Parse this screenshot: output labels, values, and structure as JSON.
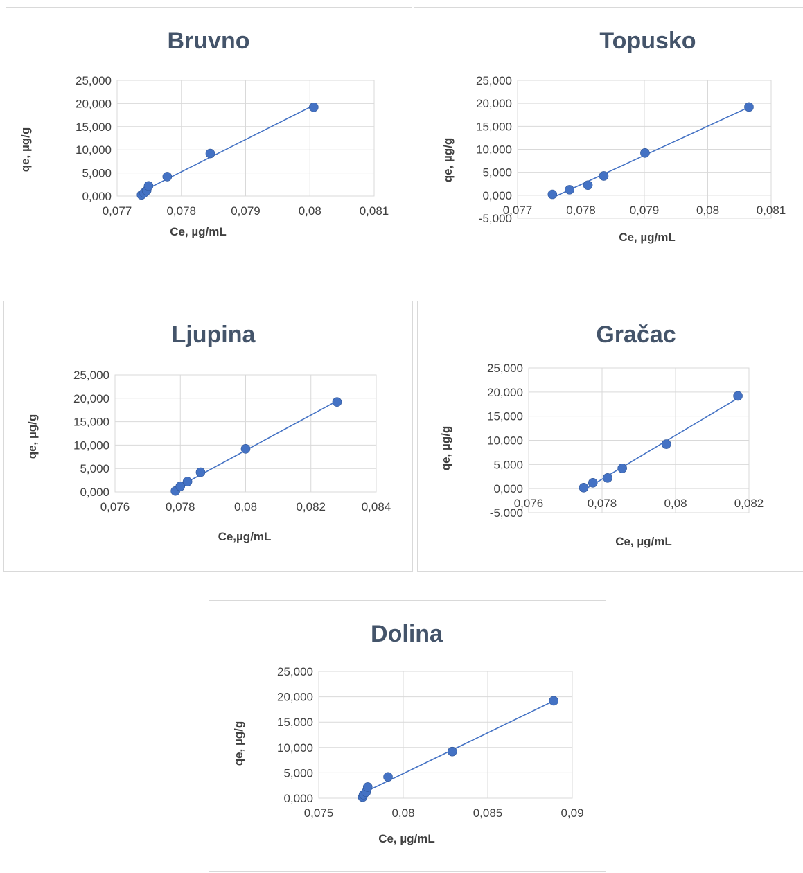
{
  "chart_data": [
    {
      "type": "scatter",
      "title": "Bruvno",
      "xlabel": "Ce, µg/mL",
      "ylabel": "qe, µg/g",
      "xlim": [
        0.077,
        0.081
      ],
      "ylim": [
        0,
        25000
      ],
      "xticks": [
        "0,077",
        "0,078",
        "0,079",
        "0,08",
        "0,081"
      ],
      "yticks": [
        "0,000",
        "5,000",
        "10,000",
        "15,000",
        "20,000",
        "25,000"
      ],
      "trendline": true,
      "x": [
        0.07738,
        0.07742,
        0.07746,
        0.07749,
        0.07778,
        0.07845,
        0.08006
      ],
      "y": [
        250,
        700,
        1200,
        2200,
        4200,
        9200,
        19200
      ]
    },
    {
      "type": "scatter",
      "title": "Topusko",
      "xlabel": "Ce, µg/mL",
      "ylabel": "qe, µg/g",
      "xlim": [
        0.077,
        0.081
      ],
      "ylim": [
        -5000,
        25000
      ],
      "xticks": [
        "0,077",
        "0,078",
        "0,079",
        "0,08",
        "0,081"
      ],
      "yticks": [
        "-5,000",
        "0,000",
        "5,000",
        "10,000",
        "15,000",
        "20,000",
        "25,000"
      ],
      "trendline": true,
      "x": [
        0.07755,
        0.07782,
        0.07811,
        0.07836,
        0.07901,
        0.08065
      ],
      "y": [
        200,
        1200,
        2200,
        4200,
        9200,
        19200
      ]
    },
    {
      "type": "scatter",
      "title": "Ljupina",
      "xlabel": "Ce,µg/mL",
      "ylabel": "qe, µg/g",
      "xlim": [
        0.076,
        0.084
      ],
      "ylim": [
        0,
        25000
      ],
      "xticks": [
        "0,076",
        "0,078",
        "0,08",
        "0,082",
        "0,084"
      ],
      "yticks": [
        "0,000",
        "5,000",
        "10,000",
        "15,000",
        "20,000",
        "25,000"
      ],
      "trendline": true,
      "x": [
        0.07785,
        0.078,
        0.07822,
        0.07862,
        0.08,
        0.0828
      ],
      "y": [
        200,
        1200,
        2200,
        4200,
        9200,
        19200
      ]
    },
    {
      "type": "scatter",
      "title": "Gračac",
      "xlabel": "Ce, µg/mL",
      "ylabel": "qe, µg/g",
      "xlim": [
        0.076,
        0.082
      ],
      "ylim": [
        -5000,
        25000
      ],
      "xticks": [
        "0,076",
        "0,078",
        "0,08",
        "0,082"
      ],
      "yticks": [
        "-5,000",
        "0,000",
        "5,000",
        "10,000",
        "15,000",
        "20,000",
        "25,000"
      ],
      "trendline": true,
      "x": [
        0.0775,
        0.07775,
        0.07815,
        0.07855,
        0.07975,
        0.0817
      ],
      "y": [
        200,
        1200,
        2200,
        4200,
        9200,
        19200
      ]
    },
    {
      "type": "scatter",
      "title": "Dolina",
      "xlabel": "Ce, µg/mL",
      "ylabel": "qe, µg/g",
      "xlim": [
        0.075,
        0.09
      ],
      "ylim": [
        0,
        25000
      ],
      "xticks": [
        "0,075",
        "0,08",
        "0,085",
        "0,09"
      ],
      "yticks": [
        "0,000",
        "5,000",
        "10,000",
        "15,000",
        "20,000",
        "25,000"
      ],
      "trendline": true,
      "x": [
        0.0776,
        0.07765,
        0.0778,
        0.0779,
        0.0791,
        0.0829,
        0.0889
      ],
      "y": [
        200,
        700,
        1200,
        2200,
        4200,
        9200,
        19200
      ]
    }
  ],
  "colors": {
    "series": "#4472c4",
    "title": "#44546a",
    "grid": "#d9d9d9",
    "text": "#404040"
  }
}
